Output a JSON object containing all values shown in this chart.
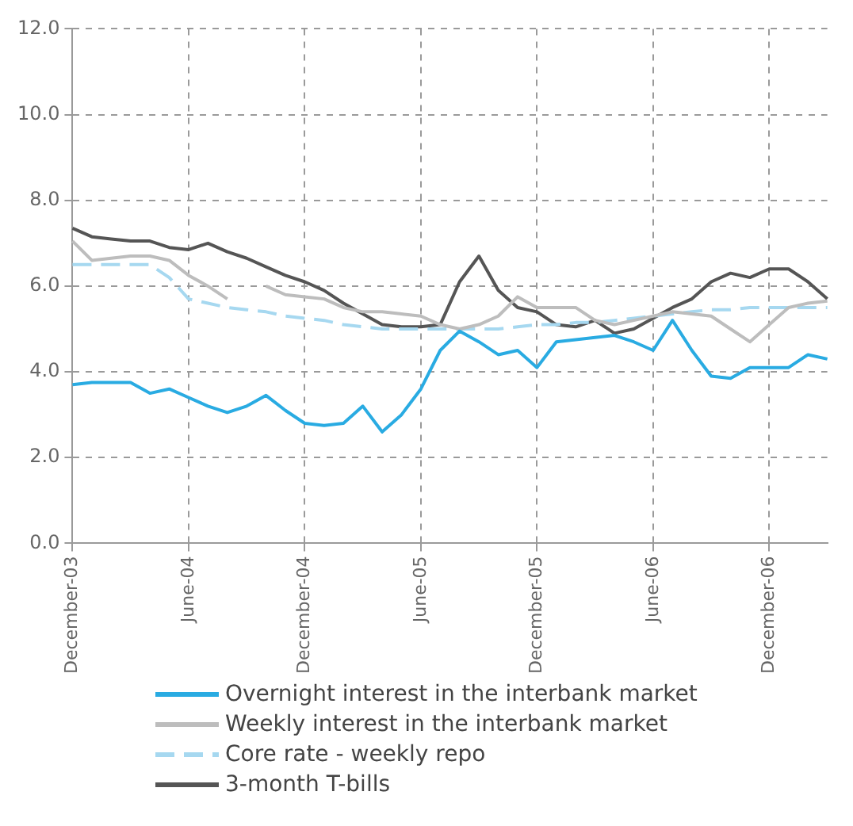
{
  "chart_data": {
    "type": "line",
    "categories": [
      "December-03",
      null,
      null,
      null,
      null,
      null,
      "June-04",
      null,
      null,
      null,
      null,
      null,
      "December-04",
      null,
      null,
      null,
      null,
      null,
      "June-05",
      null,
      null,
      null,
      null,
      null,
      "December-05",
      null,
      null,
      null,
      null,
      null,
      "June-06",
      null,
      null,
      null,
      null,
      null,
      "December-06",
      null,
      null,
      null
    ],
    "series": [
      {
        "name": "Overnight interest in the interbank market",
        "color": "#29abe2",
        "line_style": "solid",
        "values": [
          3.7,
          3.75,
          3.75,
          3.75,
          3.5,
          3.6,
          3.4,
          3.2,
          3.05,
          3.2,
          3.45,
          3.1,
          2.8,
          2.75,
          2.8,
          3.2,
          2.6,
          3.0,
          3.6,
          4.5,
          4.95,
          4.7,
          4.4,
          4.5,
          4.1,
          4.7,
          4.75,
          4.8,
          4.85,
          4.7,
          4.5,
          5.2,
          4.5,
          3.9,
          3.85,
          4.1,
          4.1,
          4.1,
          4.4,
          4.3
        ]
      },
      {
        "name": "Weekly interest in the interbank market",
        "color": "#bdbdbd",
        "line_style": "solid",
        "values": [
          7.05,
          6.6,
          6.65,
          6.7,
          6.7,
          6.6,
          6.25,
          6.0,
          5.7,
          null,
          6.0,
          5.8,
          5.75,
          5.7,
          5.5,
          5.4,
          5.4,
          5.35,
          5.3,
          5.1,
          5.0,
          5.1,
          5.3,
          5.75,
          5.5,
          5.5,
          5.5,
          5.2,
          5.1,
          5.2,
          5.3,
          5.4,
          5.35,
          5.3,
          5.0,
          4.7,
          5.1,
          5.5,
          5.6,
          5.65
        ]
      },
      {
        "name": "Core rate - weekly repo",
        "color": "#a6d8f0",
        "line_style": "dashed",
        "values": [
          6.5,
          6.5,
          6.5,
          6.5,
          6.5,
          6.2,
          5.7,
          5.6,
          5.5,
          5.45,
          5.4,
          5.3,
          5.25,
          5.2,
          5.1,
          5.05,
          5.0,
          5.0,
          5.0,
          5.0,
          5.0,
          5.0,
          5.0,
          5.05,
          5.1,
          5.1,
          5.15,
          5.15,
          5.2,
          5.25,
          5.3,
          5.35,
          5.4,
          5.45,
          5.45,
          5.5,
          5.5,
          5.5,
          5.5,
          5.5
        ]
      },
      {
        "name": "3-month T-bills",
        "color": "#555555",
        "line_style": "solid",
        "values": [
          7.35,
          7.15,
          7.1,
          7.05,
          7.05,
          6.9,
          6.85,
          7.0,
          6.8,
          6.65,
          6.45,
          6.25,
          6.1,
          5.9,
          5.6,
          5.35,
          5.1,
          5.05,
          5.05,
          5.1,
          6.1,
          6.7,
          5.9,
          5.5,
          5.4,
          5.1,
          5.05,
          5.2,
          4.9,
          5.0,
          5.25,
          5.5,
          5.7,
          6.1,
          6.3,
          6.2,
          6.4,
          6.4,
          6.1,
          5.7
        ]
      }
    ],
    "ylim": [
      0,
      12
    ],
    "yticks": [
      {
        "value": 0,
        "label": "0.0"
      },
      {
        "value": 2,
        "label": "2.0"
      },
      {
        "value": 4,
        "label": "4.0"
      },
      {
        "value": 6,
        "label": "6.0"
      },
      {
        "value": 8,
        "label": "8.0"
      },
      {
        "value": 10,
        "label": "10.0"
      },
      {
        "value": 12,
        "label": "12.0"
      }
    ],
    "grid": true,
    "legend": "bottom",
    "marker": "none"
  }
}
